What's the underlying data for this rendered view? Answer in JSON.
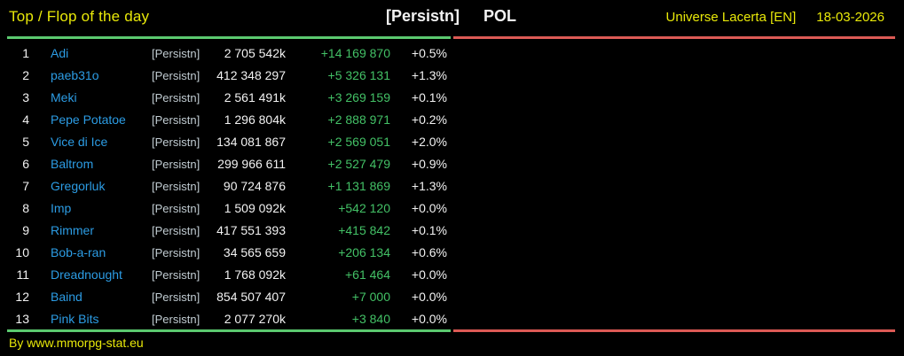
{
  "header": {
    "title": "Top / Flop of the day",
    "alliance_tag": "[Persistn]",
    "country": "POL",
    "universe": "Universe Lacerta [EN]",
    "date": "18-03-2026"
  },
  "table": {
    "rows": [
      {
        "rank": "1",
        "name": "Adi",
        "tag": "[Persistn]",
        "points": "2 705 542k",
        "change": "+14 169 870",
        "percent": "+0.5%"
      },
      {
        "rank": "2",
        "name": "paeb31o",
        "tag": "[Persistn]",
        "points": "412 348 297",
        "change": "+5 326 131",
        "percent": "+1.3%"
      },
      {
        "rank": "3",
        "name": "Meki",
        "tag": "[Persistn]",
        "points": "2 561 491k",
        "change": "+3 269 159",
        "percent": "+0.1%"
      },
      {
        "rank": "4",
        "name": "Pepe Potatoe",
        "tag": "[Persistn]",
        "points": "1 296 804k",
        "change": "+2 888 971",
        "percent": "+0.2%"
      },
      {
        "rank": "5",
        "name": "Vice di Ice",
        "tag": "[Persistn]",
        "points": "134 081 867",
        "change": "+2 569 051",
        "percent": "+2.0%"
      },
      {
        "rank": "6",
        "name": "Baltrom",
        "tag": "[Persistn]",
        "points": "299 966 611",
        "change": "+2 527 479",
        "percent": "+0.9%"
      },
      {
        "rank": "7",
        "name": "Gregorluk",
        "tag": "[Persistn]",
        "points": "90 724 876",
        "change": "+1 131 869",
        "percent": "+1.3%"
      },
      {
        "rank": "8",
        "name": "Imp",
        "tag": "[Persistn]",
        "points": "1 509 092k",
        "change": "+542 120",
        "percent": "+0.0%"
      },
      {
        "rank": "9",
        "name": "Rimmer",
        "tag": "[Persistn]",
        "points": "417 551 393",
        "change": "+415 842",
        "percent": "+0.1%"
      },
      {
        "rank": "10",
        "name": "Bob-a-ran",
        "tag": "[Persistn]",
        "points": "34 565 659",
        "change": "+206 134",
        "percent": "+0.6%"
      },
      {
        "rank": "11",
        "name": "Dreadnought",
        "tag": "[Persistn]",
        "points": "1 768 092k",
        "change": "+61 464",
        "percent": "+0.0%"
      },
      {
        "rank": "12",
        "name": "Baind",
        "tag": "[Persistn]",
        "points": "854 507 407",
        "change": "+7 000",
        "percent": "+0.0%"
      },
      {
        "rank": "13",
        "name": "Pink Bits",
        "tag": "[Persistn]",
        "points": "2 077 270k",
        "change": "+3 840",
        "percent": "+0.0%"
      }
    ]
  },
  "footer": {
    "credit": "By www.mmorpg-stat.eu"
  },
  "colors": {
    "bg": "#000000",
    "yellow": "#e9e909",
    "white": "#f2f2f2",
    "blue": "#2c9ce4",
    "tag-gray": "#c1ccd2",
    "green-text": "#43c166",
    "green-line": "#5bc96f",
    "red-line": "#dc5a55"
  }
}
